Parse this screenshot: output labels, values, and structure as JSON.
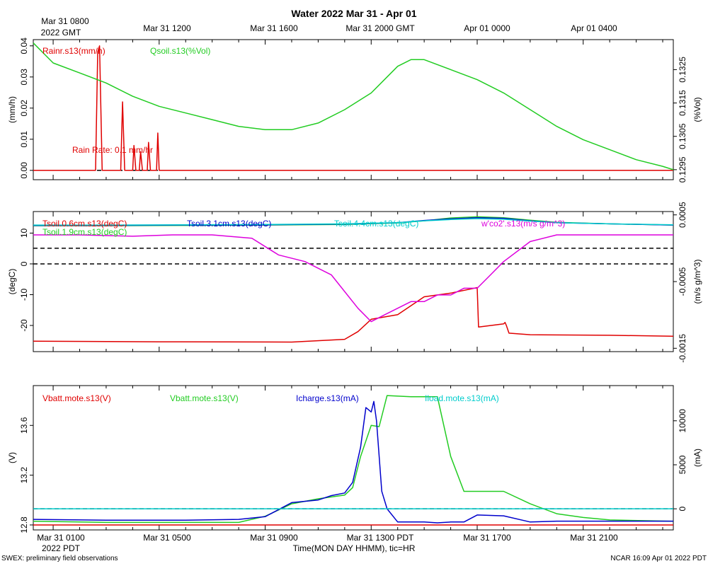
{
  "title": "Water 2022 Mar 31 - Apr 01",
  "top_time_axis": {
    "first_label_line1": "Mar 31 0800",
    "first_label_line2": "2022 GMT",
    "labels": [
      "Mar 31 1200",
      "Mar 31 1600",
      "Mar 31 2000 GMT",
      "Apr 01 0000",
      "Apr 01 0400"
    ]
  },
  "bottom_time_axis": {
    "labels": [
      "Mar 31 0100",
      "Mar 31 0500",
      "Mar 31 0900",
      "Mar 31 1300 PDT",
      "Mar 31 1700",
      "Mar 31 2100"
    ],
    "first_label_line2": "2022 PDT",
    "xlabel": "Time(MON DAY HHMM), tic=HR"
  },
  "footer": {
    "left": "SWEX: preliminary field observations",
    "right": "NCAR 16:09 Apr 01 2022 PDT"
  },
  "colors": {
    "red": "#e00000",
    "green": "#22cc22",
    "blue": "#0000cc",
    "cyan": "#00cccc",
    "magenta": "#dd00dd"
  },
  "chart_data": [
    {
      "type": "line",
      "xlim_hours_pdt": [
        0.25,
        24.4
      ],
      "left_axis": {
        "label": "(mm/h)",
        "ylim": [
          -0.003,
          0.042
        ],
        "ticks": [
          "0.00",
          "0.01",
          "0.02",
          "0.03",
          "0.04"
        ]
      },
      "right_axis": {
        "label": "(%Vol)",
        "ylim": [
          0.1292,
          0.1334
        ],
        "ticks": [
          "0.1295",
          "0.1305",
          "0.1315",
          "0.1325"
        ]
      },
      "annotation": "Rain Rate: 0.1 mm/hr",
      "reference_lines": [
        {
          "value": 0.0,
          "axis": "left",
          "style": "dashed"
        }
      ],
      "series": [
        {
          "name": "Rainr.s13(mm/h)",
          "color": "#e00000",
          "axis": "left",
          "x": [
            0.25,
            2.6,
            2.68,
            2.75,
            2.85,
            3.55,
            3.62,
            3.7,
            4.0,
            4.05,
            4.12,
            4.25,
            4.3,
            4.37,
            4.55,
            4.6,
            4.67,
            4.9,
            4.95,
            5.0,
            24.4
          ],
          "y": [
            0,
            0,
            0.038,
            0.04,
            0,
            0,
            0.022,
            0,
            0,
            0.008,
            0,
            0,
            0.006,
            0,
            0,
            0.009,
            0,
            0,
            0.012,
            0,
            0
          ]
        },
        {
          "name": "Qsoil.s13(%Vol)",
          "color": "#22cc22",
          "axis": "right",
          "x": [
            0.25,
            1.0,
            2.0,
            3.0,
            4.0,
            5.0,
            6.0,
            7.0,
            8.0,
            9.0,
            10.0,
            11.0,
            12.0,
            13.0,
            14.0,
            14.5,
            15.0,
            16.0,
            17.0,
            18.0,
            19.0,
            20.0,
            21.0,
            22.0,
            23.0,
            24.0,
            24.4
          ],
          "y": [
            0.1333,
            0.1327,
            0.1324,
            0.1321,
            0.1317,
            0.1314,
            0.1312,
            0.131,
            0.1308,
            0.1307,
            0.1307,
            0.1309,
            0.1313,
            0.1318,
            0.1326,
            0.1328,
            0.1328,
            0.1325,
            0.1322,
            0.1318,
            0.1313,
            0.1308,
            0.1304,
            0.1301,
            0.1298,
            0.1296,
            0.1295
          ]
        }
      ]
    },
    {
      "type": "line",
      "xlim_hours_pdt": [
        0.25,
        24.4
      ],
      "left_axis": {
        "label": "(degC)",
        "ylim": [
          -28.5,
          17
        ],
        "ticks": [
          "10",
          "0",
          "-10",
          "-20"
        ]
      },
      "right_axis": {
        "label": "(m/s g/m^3)",
        "ylim": [
          -0.00155,
          0.00055
        ],
        "ticks": [
          "0.0005",
          "-0.0005",
          "-0.0015"
        ]
      },
      "reference_lines": [
        {
          "value": 0.0,
          "axis": "left",
          "style": "dashed"
        },
        {
          "value": 0.0,
          "axis": "right",
          "style": "dashed"
        }
      ],
      "series": [
        {
          "name": "Tsoil.0.6cm.s13(degC)",
          "color": "#e00000",
          "axis": "left",
          "x": [
            0.25,
            5.0,
            10.0,
            12.0,
            12.5,
            13.0,
            14.0,
            15.0,
            16.0,
            17.0,
            17.05,
            18.0,
            18.05,
            18.1,
            18.2,
            19.0,
            22.0,
            24.4
          ],
          "y": [
            -25.1,
            -25.3,
            -25.4,
            -24.5,
            -22.0,
            -18.0,
            -16.5,
            -10.7,
            -9.5,
            -7.7,
            -20.5,
            -19.5,
            -19.0,
            -20.0,
            -22.5,
            -23.0,
            -23.2,
            -23.5
          ]
        },
        {
          "name": "Tsoil.1.9cm.s13(degC)",
          "color": "#22cc22",
          "axis": "left",
          "x": [
            0.25,
            3.0,
            6.0,
            9.0,
            12.0,
            14.0,
            15.0,
            16.0,
            17.0,
            18.0,
            19.0,
            20.0,
            22.0,
            24.4
          ],
          "y": [
            12.4,
            12.4,
            12.5,
            12.6,
            12.8,
            13.3,
            14.0,
            14.9,
            15.3,
            15.0,
            14.2,
            13.5,
            13.0,
            12.6
          ]
        },
        {
          "name": "Tsoil.3.1cm.s13(degC)",
          "color": "#0000cc",
          "axis": "left",
          "x": [
            0.25,
            3.0,
            6.0,
            9.0,
            12.0,
            14.0,
            15.0,
            16.0,
            17.0,
            18.0,
            19.0,
            20.0,
            22.0,
            24.4
          ],
          "y": [
            12.5,
            12.5,
            12.6,
            12.7,
            12.9,
            13.4,
            14.1,
            14.6,
            15.0,
            14.8,
            14.0,
            13.4,
            13.0,
            12.6
          ]
        },
        {
          "name": "Tsoil.4.4cm.s13(degC)",
          "color": "#00cccc",
          "axis": "left",
          "x": [
            0.25,
            3.0,
            6.0,
            9.0,
            12.0,
            14.0,
            15.0,
            16.0,
            17.0,
            18.0,
            19.0,
            20.0,
            22.0,
            24.4
          ],
          "y": [
            12.6,
            12.6,
            12.7,
            12.8,
            13.0,
            13.4,
            14.0,
            14.4,
            14.7,
            14.5,
            13.9,
            13.4,
            13.0,
            12.7
          ]
        },
        {
          "name": "w'co2'.s13(m/s g/m^3)",
          "color": "#dd00dd",
          "axis": "right",
          "x": [
            0.25,
            2.0,
            4.0,
            5.5,
            7.0,
            8.5,
            9.5,
            10.5,
            11.5,
            12.5,
            13.0,
            13.5,
            14.0,
            14.5,
            15.0,
            15.5,
            16.0,
            16.5,
            17.0,
            17.5,
            18.0,
            19.0,
            20.0,
            22.0,
            24.4
          ],
          "y": [
            0.0002,
            0.0002,
            0.00018,
            0.0002,
            0.0002,
            0.00015,
            -0.0001,
            -0.0002,
            -0.0004,
            -0.0009,
            -0.0011,
            -0.001,
            -0.0009,
            -0.0008,
            -0.0008,
            -0.0007,
            -0.0007,
            -0.0006,
            -0.0006,
            -0.0004,
            -0.0002,
            0.0001,
            0.0002,
            0.0002,
            0.0002
          ]
        }
      ]
    },
    {
      "type": "line",
      "xlim_hours_pdt": [
        0.25,
        24.4
      ],
      "left_axis": {
        "label": "(V)",
        "ylim": [
          12.76,
          13.92
        ],
        "ticks": [
          "12.8",
          "13.2",
          "13.6"
        ]
      },
      "right_axis": {
        "label": "(mA)",
        "ylim": [
          -2400,
          14000
        ],
        "ticks": [
          "0",
          "5000",
          "10000"
        ]
      },
      "reference_lines": [
        {
          "value": 0,
          "axis": "right",
          "style": "dashed"
        }
      ],
      "series": [
        {
          "name": "Vbatt.mote.s13(V)",
          "color": "#e00000",
          "axis": "left",
          "x": [
            0.25,
            24.4
          ],
          "y": [
            12.8,
            12.8
          ]
        },
        {
          "name": "Vbatt.mote.s13(V)",
          "color": "#22cc22",
          "axis": "left",
          "x": [
            0.25,
            3.0,
            6.0,
            8.0,
            9.0,
            10.0,
            11.0,
            12.0,
            12.3,
            12.6,
            13.0,
            13.3,
            13.6,
            14.5,
            15.0,
            15.5,
            16.0,
            16.5,
            17.0,
            18.0,
            19.0,
            20.0,
            21.0,
            22.0,
            24.4
          ],
          "y": [
            12.83,
            12.82,
            12.82,
            12.82,
            12.87,
            12.97,
            13.01,
            13.04,
            13.1,
            13.35,
            13.6,
            13.59,
            13.84,
            13.83,
            13.83,
            13.83,
            13.35,
            13.07,
            13.07,
            13.07,
            12.97,
            12.89,
            12.86,
            12.84,
            12.83
          ]
        },
        {
          "name": "Icharge.s13(mA)",
          "color": "#0000cc",
          "axis": "right",
          "x": [
            0.25,
            3.0,
            6.0,
            8.0,
            9.0,
            10.0,
            11.0,
            11.5,
            12.0,
            12.3,
            12.6,
            12.8,
            13.0,
            13.1,
            13.2,
            13.4,
            13.6,
            14.0,
            15.0,
            15.5,
            16.0,
            16.5,
            17.0,
            18.0,
            19.0,
            20.0,
            22.0,
            24.4
          ],
          "y": [
            -1200,
            -1300,
            -1300,
            -1200,
            -900,
            700,
            1000,
            1500,
            1800,
            3000,
            7000,
            11500,
            11000,
            12200,
            10000,
            2000,
            0,
            -1500,
            -1500,
            -1600,
            -1500,
            -1500,
            -700,
            -800,
            -1500,
            -1400,
            -1400,
            -1400
          ]
        },
        {
          "name": "Iload.mote.s13(mA)",
          "color": "#00cccc",
          "axis": "right",
          "x": [
            0.25,
            24.4
          ],
          "y": [
            0,
            0
          ]
        }
      ]
    }
  ]
}
